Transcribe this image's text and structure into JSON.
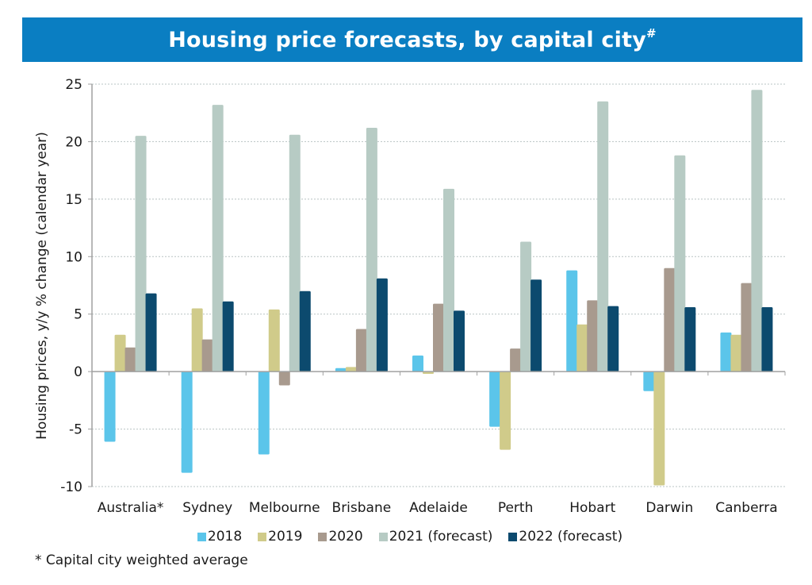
{
  "header": {
    "title": "Housing price forecasts, by capital city",
    "title_superscript": "#",
    "banner_color": "#0A7EC2"
  },
  "footnote": "* Capital city weighted average",
  "chart_data": {
    "type": "bar",
    "title": "Housing price forecasts, by capital city#",
    "xlabel": "",
    "ylabel": "Housing prices, y/y % change (calendar year)",
    "ylim": [
      -10,
      25
    ],
    "yticks": [
      25,
      20,
      15,
      10,
      5,
      0,
      -5,
      -10
    ],
    "grid": true,
    "legend_position": "bottom",
    "categories": [
      "Australia*",
      "Sydney",
      "Melbourne",
      "Brisbane",
      "Adelaide",
      "Perth",
      "Hobart",
      "Darwin",
      "Canberra"
    ],
    "series": [
      {
        "name": "2018",
        "color": "#5BC5EA",
        "values": [
          -6.1,
          -8.8,
          -7.2,
          0.3,
          1.4,
          -4.8,
          8.8,
          -1.7,
          3.4
        ]
      },
      {
        "name": "2019",
        "color": "#D0CB8A",
        "values": [
          3.2,
          5.5,
          5.4,
          0.4,
          -0.2,
          -6.8,
          4.1,
          -9.9,
          3.2
        ]
      },
      {
        "name": "2020",
        "color": "#A89A8E",
        "values": [
          2.1,
          2.8,
          -1.2,
          3.7,
          5.9,
          2.0,
          6.2,
          9.0,
          7.7
        ]
      },
      {
        "name": "2021 (forecast)",
        "color": "#B7CBC4",
        "values": [
          20.5,
          23.2,
          20.6,
          21.2,
          15.9,
          11.3,
          23.5,
          18.8,
          24.5
        ]
      },
      {
        "name": "2022 (forecast)",
        "color": "#0C4A6E",
        "values": [
          6.8,
          6.1,
          7.0,
          8.1,
          5.3,
          8.0,
          5.7,
          5.6,
          5.6
        ]
      }
    ],
    "footnote": "* Capital city weighted average"
  }
}
